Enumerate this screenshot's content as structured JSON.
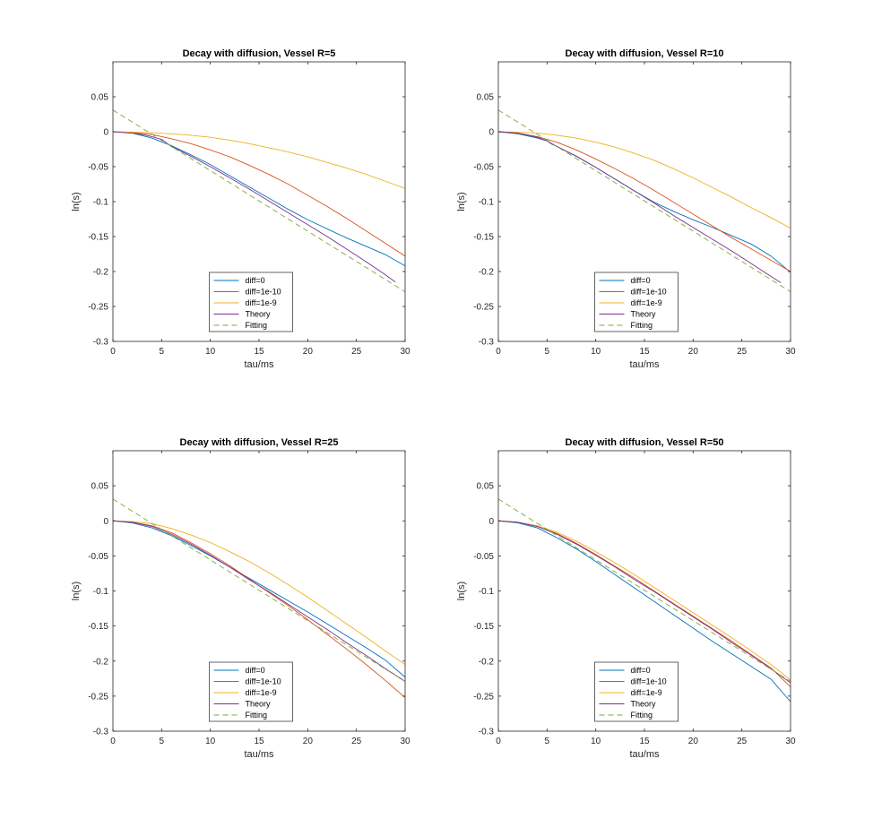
{
  "chart_data": [
    {
      "type": "line",
      "title": "Decay with diffusion, Vessel R=5",
      "xlabel": "tau/ms",
      "ylabel": "ln(s)",
      "xlim": [
        0,
        30
      ],
      "ylim": [
        -0.3,
        0.1
      ],
      "xticks": [
        "0",
        "5",
        "10",
        "15",
        "20",
        "25",
        "30"
      ],
      "yticks": [
        "-0.3",
        "-0.25",
        "-0.2",
        "-0.15",
        "-0.1",
        "-0.05",
        "0",
        "0.05"
      ],
      "grid": false,
      "legend_position": "bottom-center",
      "series": [
        {
          "name": "diff=0",
          "color": "#0072BD",
          "dash": "solid",
          "x": [
            0,
            2,
            4,
            6,
            8,
            10,
            12,
            14,
            16,
            18,
            20,
            22,
            24,
            26,
            28,
            30
          ],
          "y": [
            0,
            -0.002,
            -0.009,
            -0.02,
            -0.033,
            -0.047,
            -0.063,
            -0.079,
            -0.095,
            -0.111,
            -0.126,
            -0.139,
            -0.152,
            -0.164,
            -0.176,
            -0.192
          ]
        },
        {
          "name": "diff=1e-10",
          "color": "#D95319",
          "dash": "solid",
          "x": [
            0,
            2,
            4,
            6,
            8,
            10,
            12,
            14,
            16,
            18,
            20,
            22,
            24,
            26,
            28,
            30
          ],
          "y": [
            0,
            -0.001,
            -0.004,
            -0.01,
            -0.017,
            -0.026,
            -0.036,
            -0.048,
            -0.061,
            -0.075,
            -0.091,
            -0.107,
            -0.124,
            -0.142,
            -0.16,
            -0.178
          ]
        },
        {
          "name": "diff=1e-9",
          "color": "#EDB120",
          "dash": "solid",
          "x": [
            0,
            2,
            4,
            6,
            8,
            10,
            12,
            14,
            16,
            18,
            20,
            22,
            24,
            26,
            28,
            30
          ],
          "y": [
            0,
            -0.0005,
            -0.0015,
            -0.003,
            -0.005,
            -0.008,
            -0.012,
            -0.017,
            -0.023,
            -0.029,
            -0.036,
            -0.044,
            -0.052,
            -0.061,
            -0.071,
            -0.081
          ]
        },
        {
          "name": "Theory",
          "color": "#7E2F8E",
          "dash": "solid",
          "x": [
            0,
            2,
            3,
            4,
            5,
            5.5,
            6,
            8,
            10,
            12,
            14,
            16,
            18,
            20,
            22,
            24,
            26,
            28,
            29
          ],
          "y": [
            0,
            -0.002,
            -0.004,
            -0.007,
            -0.011,
            -0.016,
            -0.021,
            -0.035,
            -0.05,
            -0.066,
            -0.082,
            -0.099,
            -0.116,
            -0.133,
            -0.15,
            -0.168,
            -0.186,
            -0.205,
            -0.215
          ]
        },
        {
          "name": "Fitting",
          "color": "#77AC30",
          "dash": "dashed",
          "x": [
            0,
            30
          ],
          "y": [
            0.031,
            -0.229
          ]
        }
      ]
    },
    {
      "type": "line",
      "title": "Decay with diffusion, Vessel R=10",
      "xlabel": "tau/ms",
      "ylabel": "ln(s)",
      "xlim": [
        0,
        30
      ],
      "ylim": [
        -0.3,
        0.1
      ],
      "xticks": [
        "0",
        "5",
        "10",
        "15",
        "20",
        "25",
        "30"
      ],
      "yticks": [
        "-0.3",
        "-0.25",
        "-0.2",
        "-0.15",
        "-0.1",
        "-0.05",
        "0",
        "0.05"
      ],
      "grid": false,
      "legend_position": "bottom-center",
      "series": [
        {
          "name": "diff=0",
          "color": "#0072BD",
          "dash": "solid",
          "x": [
            0,
            2,
            4,
            5,
            5.5,
            6,
            8,
            10,
            12,
            14,
            16,
            18,
            20,
            22,
            24,
            26,
            28,
            30
          ],
          "y": [
            0,
            -0.003,
            -0.009,
            -0.013,
            -0.018,
            -0.021,
            -0.035,
            -0.051,
            -0.068,
            -0.085,
            -0.101,
            -0.114,
            -0.126,
            -0.137,
            -0.149,
            -0.161,
            -0.178,
            -0.201
          ]
        },
        {
          "name": "diff=1e-10",
          "color": "#D95319",
          "dash": "solid",
          "x": [
            0,
            2,
            4,
            6,
            8,
            10,
            12,
            14,
            16,
            18,
            20,
            22,
            24,
            26,
            28,
            30
          ],
          "y": [
            0,
            -0.002,
            -0.007,
            -0.015,
            -0.026,
            -0.039,
            -0.053,
            -0.068,
            -0.084,
            -0.101,
            -0.118,
            -0.135,
            -0.152,
            -0.168,
            -0.184,
            -0.2
          ]
        },
        {
          "name": "diff=1e-9",
          "color": "#EDB120",
          "dash": "solid",
          "x": [
            0,
            2,
            4,
            6,
            8,
            10,
            12,
            14,
            16,
            18,
            20,
            22,
            24,
            26,
            28,
            30
          ],
          "y": [
            0,
            -0.0007,
            -0.002,
            -0.005,
            -0.009,
            -0.015,
            -0.022,
            -0.031,
            -0.041,
            -0.053,
            -0.066,
            -0.08,
            -0.094,
            -0.109,
            -0.123,
            -0.138
          ]
        },
        {
          "name": "Theory",
          "color": "#7E2F8E",
          "dash": "solid",
          "x": [
            0,
            2,
            4,
            5,
            5.5,
            6,
            8,
            10,
            12,
            14,
            16,
            18,
            20,
            22,
            24,
            26,
            28,
            29
          ],
          "y": [
            0,
            -0.002,
            -0.008,
            -0.013,
            -0.017,
            -0.021,
            -0.035,
            -0.051,
            -0.068,
            -0.085,
            -0.102,
            -0.12,
            -0.137,
            -0.154,
            -0.171,
            -0.189,
            -0.207,
            -0.216
          ]
        },
        {
          "name": "Fitting",
          "color": "#77AC30",
          "dash": "dashed",
          "x": [
            0,
            30
          ],
          "y": [
            0.031,
            -0.229
          ]
        }
      ]
    },
    {
      "type": "line",
      "title": "Decay with diffusion, Vessel R=25",
      "xlabel": "tau/ms",
      "ylabel": "ln(s)",
      "xlim": [
        0,
        30
      ],
      "ylim": [
        -0.3,
        0.1
      ],
      "xticks": [
        "0",
        "5",
        "10",
        "15",
        "20",
        "25",
        "30"
      ],
      "yticks": [
        "-0.3",
        "-0.25",
        "-0.2",
        "-0.15",
        "-0.1",
        "-0.05",
        "0",
        "0.05"
      ],
      "grid": false,
      "legend_position": "bottom-center",
      "series": [
        {
          "name": "diff=0",
          "color": "#0072BD",
          "dash": "solid",
          "x": [
            0,
            2,
            4,
            6,
            8,
            10,
            12,
            14,
            16,
            18,
            20,
            22,
            24,
            26,
            28,
            30
          ],
          "y": [
            0,
            -0.003,
            -0.01,
            -0.021,
            -0.035,
            -0.05,
            -0.066,
            -0.082,
            -0.098,
            -0.114,
            -0.13,
            -0.147,
            -0.164,
            -0.181,
            -0.199,
            -0.223
          ]
        },
        {
          "name": "diff=1e-10",
          "color": "#D95319",
          "dash": "solid",
          "x": [
            0,
            2,
            4,
            6,
            8,
            10,
            12,
            14,
            16,
            18,
            20,
            22,
            24,
            26,
            28,
            30
          ],
          "y": [
            0,
            -0.002,
            -0.007,
            -0.017,
            -0.031,
            -0.047,
            -0.064,
            -0.083,
            -0.102,
            -0.121,
            -0.141,
            -0.162,
            -0.183,
            -0.205,
            -0.228,
            -0.252
          ]
        },
        {
          "name": "diff=1e-9",
          "color": "#EDB120",
          "dash": "solid",
          "x": [
            0,
            2,
            4,
            6,
            8,
            10,
            12,
            14,
            16,
            18,
            20,
            22,
            24,
            26,
            28,
            30
          ],
          "y": [
            0,
            -0.001,
            -0.004,
            -0.011,
            -0.02,
            -0.031,
            -0.044,
            -0.058,
            -0.074,
            -0.091,
            -0.109,
            -0.128,
            -0.147,
            -0.166,
            -0.186,
            -0.205
          ]
        },
        {
          "name": "Theory",
          "color": "#7E2F8E",
          "dash": "solid",
          "x": [
            0,
            2,
            4,
            6,
            8,
            10,
            12,
            14,
            16,
            18,
            20,
            22,
            24,
            26,
            28,
            30
          ],
          "y": [
            0,
            -0.002,
            -0.008,
            -0.019,
            -0.033,
            -0.049,
            -0.066,
            -0.084,
            -0.101,
            -0.119,
            -0.137,
            -0.155,
            -0.174,
            -0.192,
            -0.211,
            -0.229
          ]
        },
        {
          "name": "Fitting",
          "color": "#77AC30",
          "dash": "dashed",
          "x": [
            0,
            30
          ],
          "y": [
            0.031,
            -0.229
          ]
        }
      ]
    },
    {
      "type": "line",
      "title": "Decay with diffusion, Vessel R=50",
      "xlabel": "tau/ms",
      "ylabel": "ln(s)",
      "xlim": [
        0,
        30
      ],
      "ylim": [
        -0.3,
        0.1
      ],
      "xticks": [
        "0",
        "5",
        "10",
        "15",
        "20",
        "25",
        "30"
      ],
      "yticks": [
        "-0.3",
        "-0.25",
        "-0.2",
        "-0.15",
        "-0.1",
        "-0.05",
        "0",
        "0.05"
      ],
      "grid": false,
      "legend_position": "bottom-center",
      "series": [
        {
          "name": "diff=0",
          "color": "#0072BD",
          "dash": "solid",
          "x": [
            0,
            2,
            4,
            6,
            8,
            10,
            12,
            14,
            16,
            18,
            20,
            22,
            24,
            26,
            28,
            30
          ],
          "y": [
            0,
            -0.003,
            -0.01,
            -0.024,
            -0.04,
            -0.058,
            -0.077,
            -0.096,
            -0.115,
            -0.134,
            -0.153,
            -0.172,
            -0.19,
            -0.208,
            -0.226,
            -0.258
          ]
        },
        {
          "name": "diff=1e-10",
          "color": "#D95319",
          "dash": "solid",
          "x": [
            0,
            2,
            4,
            6,
            8,
            10,
            12,
            14,
            16,
            18,
            20,
            22,
            24,
            26,
            28,
            30
          ],
          "y": [
            0,
            -0.002,
            -0.008,
            -0.018,
            -0.032,
            -0.048,
            -0.065,
            -0.082,
            -0.1,
            -0.118,
            -0.136,
            -0.154,
            -0.172,
            -0.191,
            -0.21,
            -0.237
          ]
        },
        {
          "name": "diff=1e-9",
          "color": "#EDB120",
          "dash": "solid",
          "x": [
            0,
            2,
            4,
            6,
            8,
            10,
            12,
            14,
            16,
            18,
            20,
            22,
            24,
            26,
            28,
            30
          ],
          "y": [
            0,
            -0.002,
            -0.007,
            -0.016,
            -0.029,
            -0.044,
            -0.06,
            -0.077,
            -0.095,
            -0.113,
            -0.131,
            -0.149,
            -0.167,
            -0.186,
            -0.205,
            -0.227
          ]
        },
        {
          "name": "Theory",
          "color": "#7E2F8E",
          "dash": "solid",
          "x": [
            0,
            2,
            4,
            6,
            8,
            10,
            12,
            14,
            16,
            18,
            20,
            22,
            24,
            26,
            28,
            30
          ],
          "y": [
            0,
            -0.002,
            -0.008,
            -0.019,
            -0.033,
            -0.049,
            -0.066,
            -0.084,
            -0.101,
            -0.119,
            -0.137,
            -0.155,
            -0.174,
            -0.192,
            -0.211,
            -0.231
          ]
        },
        {
          "name": "Fitting",
          "color": "#77AC30",
          "dash": "dashed",
          "x": [
            0,
            30
          ],
          "y": [
            0.031,
            -0.229
          ]
        }
      ]
    }
  ]
}
